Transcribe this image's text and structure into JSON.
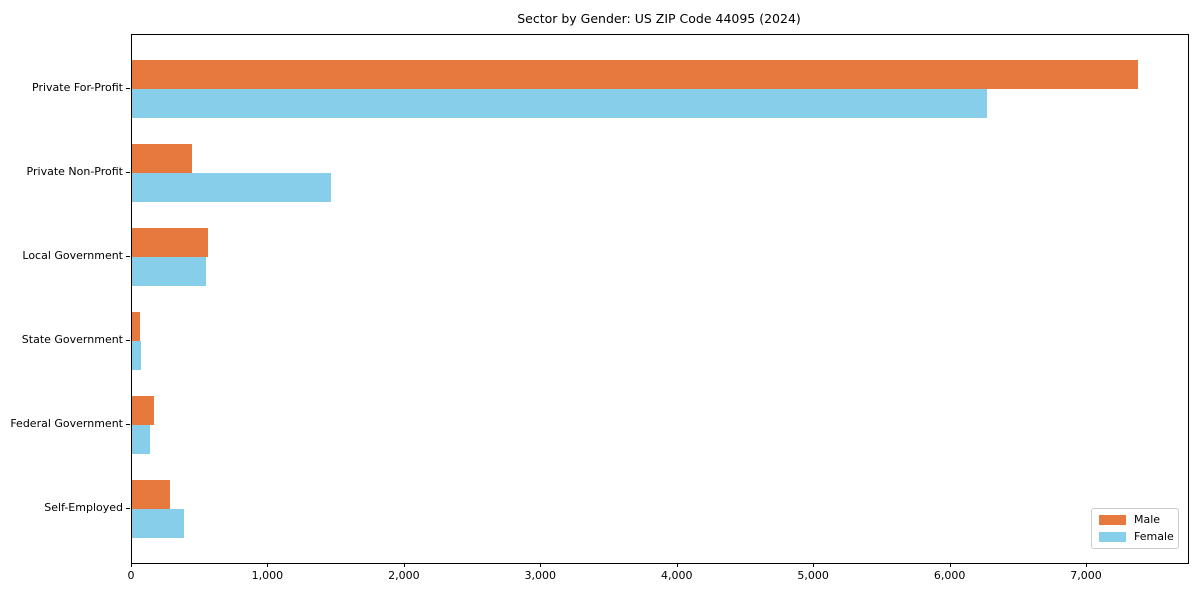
{
  "chart_data": {
    "type": "bar",
    "orientation": "horizontal",
    "title": "Sector by Gender: US ZIP Code 44095 (2024)",
    "categories": [
      "Private For-Profit",
      "Private Non-Profit",
      "Local Government",
      "State Government",
      "Federal Government",
      "Self-Employed"
    ],
    "series": [
      {
        "name": "Male",
        "color": "#e8793e",
        "values": [
          7370,
          440,
          560,
          55,
          160,
          280
        ]
      },
      {
        "name": "Female",
        "color": "#87ceeb",
        "values": [
          6270,
          1460,
          545,
          65,
          130,
          380
        ]
      }
    ],
    "xlabel": "",
    "ylabel": "",
    "xlim": [
      0,
      7740
    ],
    "xticks": {
      "values": [
        0,
        1000,
        2000,
        3000,
        4000,
        5000,
        6000,
        7000
      ],
      "labels": [
        "0",
        "1,000",
        "2,000",
        "3,000",
        "4,000",
        "5,000",
        "6,000",
        "7,000"
      ]
    },
    "grid": false,
    "legend": {
      "position": "lower right"
    }
  }
}
